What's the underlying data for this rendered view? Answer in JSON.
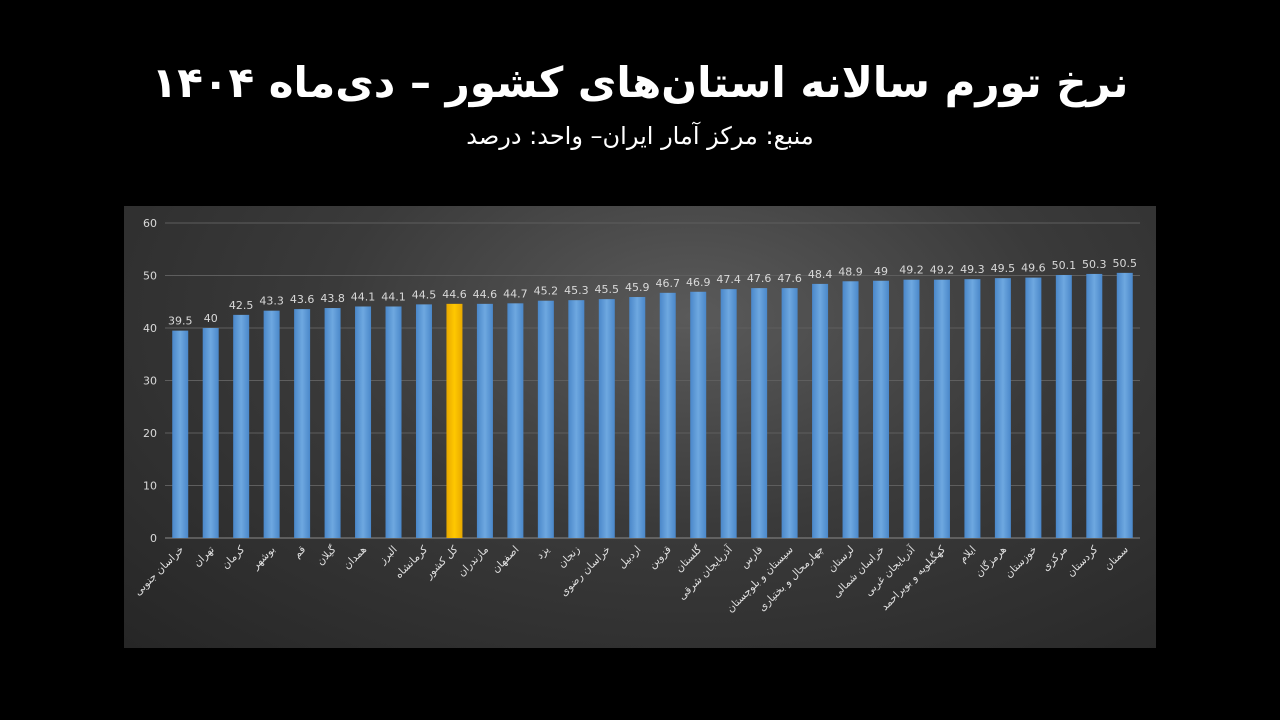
{
  "title": "نرخ تورم سالانه استان‌های کشور – دی‌ماه ۱۴۰۴",
  "subtitle": "منبع: مرکز آمار ایران– واحد: درصد",
  "chart_data": {
    "type": "bar",
    "title": "نرخ تورم سالانه استان‌های کشور – دی‌ماه ۱۴۰۴",
    "subtitle": "منبع: مرکز آمار ایران– واحد: درصد",
    "categories": [
      "خراسان جنوبی",
      "تهران",
      "کرمان",
      "بوشهر",
      "قم",
      "گیلان",
      "همدان",
      "البرز",
      "کرمانشاه",
      "کل کشور",
      "مازندران",
      "اصفهان",
      "یزد",
      "زنجان",
      "خراسان رضوی",
      "اردبیل",
      "قزوین",
      "گلستان",
      "آذربایجان شرقی",
      "فارس",
      "سیستان و بلوچستان",
      "چهارمحال و بختیاری",
      "لرستان",
      "خراسان شمالی",
      "آذربایجان غربی",
      "کهگیلویه و بویراحمد",
      "ایلام",
      "هرمزگان",
      "خوزستان",
      "مرکزی",
      "کردستان",
      "سمنان"
    ],
    "values": [
      39.5,
      40,
      42.5,
      43.3,
      43.6,
      43.8,
      44.1,
      44.1,
      44.5,
      44.6,
      44.6,
      44.7,
      45.2,
      45.3,
      45.5,
      45.9,
      46.7,
      46.9,
      47.4,
      47.6,
      47.6,
      48.4,
      48.9,
      49,
      49.2,
      49.2,
      49.3,
      49.5,
      49.6,
      50.1,
      50.3,
      50.5
    ],
    "highlight_category": "کل کشور",
    "ylim": [
      0,
      60
    ],
    "yticks": [
      0,
      10,
      20,
      30,
      40,
      50,
      60
    ],
    "grid": true,
    "data_labels": true,
    "colors": {
      "bar": "#5b9bd5",
      "highlight": "#ffc000",
      "background": "#000000"
    }
  }
}
